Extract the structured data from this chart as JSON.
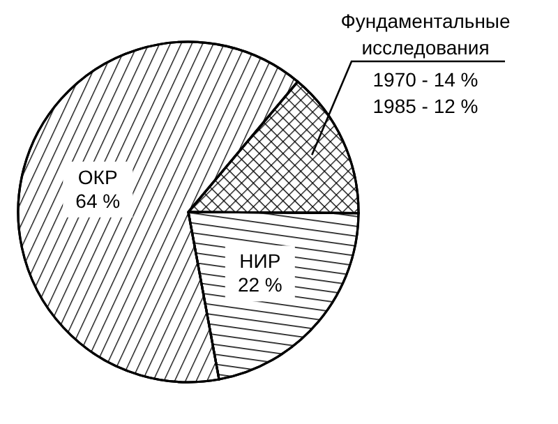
{
  "chart_data": {
    "type": "pie",
    "categories": [
      "Фундаментальные исследования",
      "НИР",
      "ОКР"
    ],
    "values": [
      14,
      22,
      64
    ],
    "colors": [
      "#ffffff",
      "#ffffff",
      "#ffffff"
    ],
    "value_labels": [
      null,
      "22 %",
      "64 %"
    ],
    "annotations": [
      "1970 - 14 %",
      "1985 - 12 %"
    ]
  }
}
